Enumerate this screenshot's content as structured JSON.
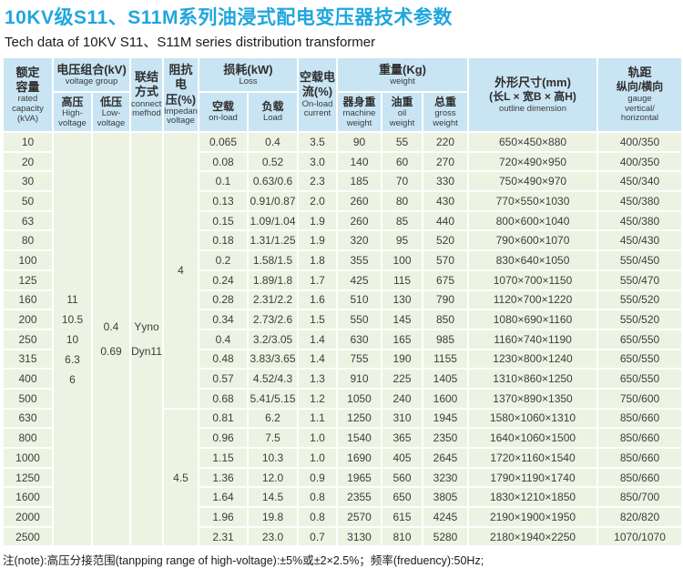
{
  "page": {
    "title": "10KV级S11、S11M系列油浸式配电变压器技术参数",
    "subtitle": "Tech data of 10KV S11、S11M series distribution transformer",
    "note": "注(note):高压分接范围(tanpping range of high-voltage):±5%或±2×2.5%；频率(freduency):50Hz;"
  },
  "colors": {
    "title_blue": "#1FA6DF",
    "header_bg": "#C9E5F4",
    "body_bg": "#EDF3E2",
    "border_white": "#FFFFFF"
  },
  "table": {
    "header": {
      "rated_capacity": {
        "zh": "额定\n容量",
        "en": "rated\ncapacity\n(kVA)"
      },
      "voltage_group": {
        "zh": "电压组合(kV)",
        "en": "voltage group"
      },
      "high_voltage": {
        "zh": "高压",
        "en": "High-\nvoltage"
      },
      "low_voltage": {
        "zh": "低压",
        "en": "Low-\nvoltage"
      },
      "connection": {
        "zh": "联结\n方式",
        "en": "connection\nmefhod"
      },
      "impedance": {
        "zh": "阻抗电\n压(%)",
        "en": "Impedance\nvoltage"
      },
      "loss": {
        "zh": "损耗(kW)",
        "en": "Loss"
      },
      "loss_no_load": {
        "zh": "空载",
        "en": "on-load"
      },
      "loss_load": {
        "zh": "负载",
        "en": "Load"
      },
      "no_load_current": {
        "zh": "空载电\n流(%)",
        "en": "On-load\ncurrent"
      },
      "weight": {
        "zh": "重量(Kg)",
        "en": "weight"
      },
      "machine_weight": {
        "zh": "器身重",
        "en": "machine\nweight"
      },
      "oil_weight": {
        "zh": "油重",
        "en": "oil\nweight"
      },
      "gross_weight": {
        "zh": "总重",
        "en": "gross\nweight"
      },
      "outline": {
        "zh": "外形尺寸(mm)",
        "zh2": "(长L × 宽B × 高H)",
        "en": "outline dimension"
      },
      "gauge": {
        "zh": "轨距",
        "zh2": "纵向/横向",
        "en": "gauge\nvertical/\nhorizontal"
      }
    },
    "merged": {
      "high_voltage": "11\n10.5\n10\n6.3\n6",
      "low_voltage": "0.4\n0.69",
      "connection": "Yyno\nDyn11",
      "impedance": [
        {
          "value": "4",
          "row_start": 0,
          "row_span": 14
        },
        {
          "value": "4.5",
          "row_start": 14,
          "row_span": 7
        }
      ]
    },
    "row_columns": [
      "capacity_kva",
      "no_load_loss_kw",
      "load_loss_kw",
      "no_load_current_pct",
      "machine_weight_kg",
      "oil_weight_kg",
      "gross_weight_kg",
      "outline_dimension_mm",
      "gauge_mm"
    ],
    "rows": [
      [
        "10",
        "0.065",
        "0.4",
        "3.5",
        "90",
        "55",
        "220",
        "650×450×880",
        "400/350"
      ],
      [
        "20",
        "0.08",
        "0.52",
        "3.0",
        "140",
        "60",
        "270",
        "720×490×950",
        "400/350"
      ],
      [
        "30",
        "0.1",
        "0.63/0.6",
        "2.3",
        "185",
        "70",
        "330",
        "750×490×970",
        "450/340"
      ],
      [
        "50",
        "0.13",
        "0.91/0.87",
        "2.0",
        "260",
        "80",
        "430",
        "770×550×1030",
        "450/380"
      ],
      [
        "63",
        "0.15",
        "1.09/1.04",
        "1.9",
        "260",
        "85",
        "440",
        "800×600×1040",
        "450/380"
      ],
      [
        "80",
        "0.18",
        "1.31/1.25",
        "1.9",
        "320",
        "95",
        "520",
        "790×600×1070",
        "450/430"
      ],
      [
        "100",
        "0.2",
        "1.58/1.5",
        "1.8",
        "355",
        "100",
        "570",
        "830×640×1050",
        "550/450"
      ],
      [
        "125",
        "0.24",
        "1.89/1.8",
        "1.7",
        "425",
        "115",
        "675",
        "1070×700×1150",
        "550/470"
      ],
      [
        "160",
        "0.28",
        "2.31/2.2",
        "1.6",
        "510",
        "130",
        "790",
        "1120×700×1220",
        "550/520"
      ],
      [
        "200",
        "0.34",
        "2.73/2.6",
        "1.5",
        "550",
        "145",
        "850",
        "1080×690×1160",
        "550/520"
      ],
      [
        "250",
        "0.4",
        "3.2/3.05",
        "1.4",
        "630",
        "165",
        "985",
        "1160×740×1190",
        "650/550"
      ],
      [
        "315",
        "0.48",
        "3.83/3.65",
        "1.4",
        "755",
        "190",
        "1155",
        "1230×800×1240",
        "650/550"
      ],
      [
        "400",
        "0.57",
        "4.52/4.3",
        "1.3",
        "910",
        "225",
        "1405",
        "1310×860×1250",
        "650/550"
      ],
      [
        "500",
        "0.68",
        "5.41/5.15",
        "1.2",
        "1050",
        "240",
        "1600",
        "1370×890×1350",
        "750/600"
      ],
      [
        "630",
        "0.81",
        "6.2",
        "1.1",
        "1250",
        "310",
        "1945",
        "1580×1060×1310",
        "850/660"
      ],
      [
        "800",
        "0.96",
        "7.5",
        "1.0",
        "1540",
        "365",
        "2350",
        "1640×1060×1500",
        "850/660"
      ],
      [
        "1000",
        "1.15",
        "10.3",
        "1.0",
        "1690",
        "405",
        "2645",
        "1720×1160×1540",
        "850/660"
      ],
      [
        "1250",
        "1.36",
        "12.0",
        "0.9",
        "1965",
        "560",
        "3230",
        "1790×1190×1740",
        "850/660"
      ],
      [
        "1600",
        "1.64",
        "14.5",
        "0.8",
        "2355",
        "650",
        "3805",
        "1830×1210×1850",
        "850/700"
      ],
      [
        "2000",
        "1.96",
        "19.8",
        "0.8",
        "2570",
        "615",
        "4245",
        "2190×1900×1950",
        "820/820"
      ],
      [
        "2500",
        "2.31",
        "23.0",
        "0.7",
        "3130",
        "810",
        "5280",
        "2180×1940×2250",
        "1070/1070"
      ]
    ]
  }
}
